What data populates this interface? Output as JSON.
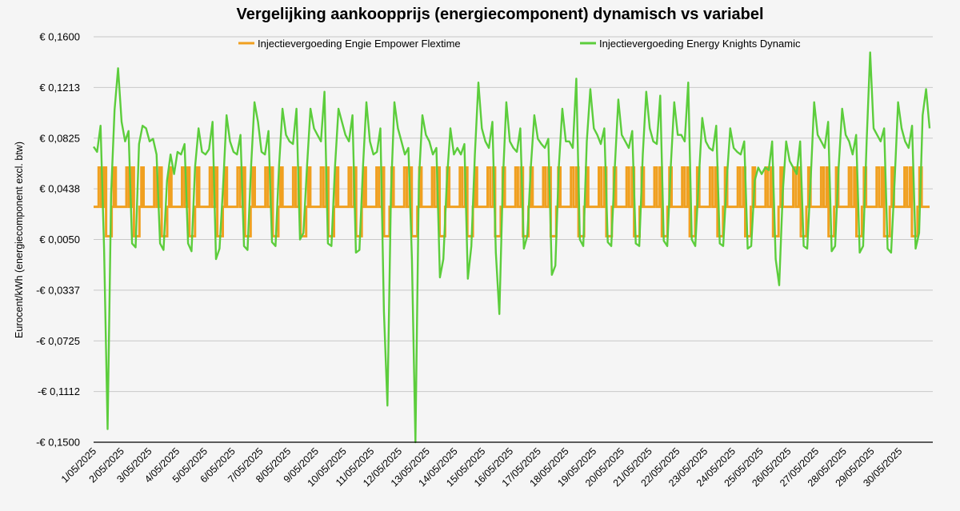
{
  "chart_data": {
    "type": "line",
    "title": "Vergelijking aankoopprijs (energiecomponent) dynamisch vs variabel",
    "xlabel": "",
    "ylabel": "Eurocent/kWh (energiecomponent excl. btw)",
    "ylim": [
      -0.15,
      0.16
    ],
    "y_ticks": [
      "€ 0,1600",
      "€ 0,1213",
      "€ 0,0825",
      "€ 0,0438",
      "€ 0,0050",
      "-€ 0,0337",
      "-€ 0,0725",
      "-€ 0,1112",
      "-€ 0,1500"
    ],
    "x_ticks": [
      "1/05/2025",
      "2/05/2025",
      "3/05/2025",
      "4/05/2025",
      "5/05/2025",
      "6/05/2025",
      "7/05/2025",
      "8/05/2025",
      "9/05/2025",
      "10/05/2025",
      "11/05/2025",
      "12/05/2025",
      "13/05/2025",
      "14/05/2025",
      "15/05/2025",
      "16/05/2025",
      "17/05/2025",
      "18/05/2025",
      "19/05/2025",
      "20/05/2025",
      "21/05/2025",
      "22/05/2025",
      "23/05/2025",
      "24/05/2025",
      "25/05/2025",
      "26/05/2025",
      "27/05/2025",
      "28/05/2025",
      "29/05/2025",
      "30/05/2025"
    ],
    "grid": true,
    "legend_position": "top",
    "series": [
      {
        "name": "Injectievergoeding Engie Empower Flextime",
        "color": "#f0a020",
        "pattern": "daily tariff: 0.0300 at night, 0.0600 at morning and evening peaks, 0.0075 during midday",
        "daily_levels": [
          0.03,
          0.06,
          0.03,
          0.06,
          0.0075,
          0.03
        ],
        "points_per_day": 8
      },
      {
        "name": "Injectievergoeding Energy Knights Dynamic",
        "color": "#5ccd3c",
        "points_per_day": 8,
        "values": [
          0.076,
          0.072,
          0.092,
          -0.002,
          -0.14,
          0.04,
          0.104,
          0.136,
          0.095,
          0.08,
          0.088,
          0.002,
          -0.001,
          0.078,
          0.092,
          0.09,
          0.08,
          0.082,
          0.07,
          0.002,
          -0.003,
          0.05,
          0.07,
          0.055,
          0.072,
          0.07,
          0.078,
          0.002,
          -0.004,
          0.06,
          0.09,
          0.072,
          0.07,
          0.074,
          0.095,
          -0.01,
          -0.002,
          0.045,
          0.1,
          0.08,
          0.072,
          0.07,
          0.085,
          0.0,
          -0.003,
          0.06,
          0.11,
          0.095,
          0.072,
          0.07,
          0.088,
          0.003,
          0.0,
          0.06,
          0.105,
          0.085,
          0.08,
          0.078,
          0.105,
          0.005,
          0.01,
          0.06,
          0.105,
          0.09,
          0.085,
          0.08,
          0.118,
          0.002,
          0.0,
          0.06,
          0.105,
          0.095,
          0.085,
          0.08,
          0.1,
          -0.005,
          -0.003,
          0.06,
          0.11,
          0.08,
          0.07,
          0.072,
          0.09,
          -0.05,
          -0.122,
          0.04,
          0.11,
          0.09,
          0.08,
          0.07,
          0.075,
          -0.01,
          -0.15,
          0.05,
          0.1,
          0.085,
          0.08,
          0.07,
          0.075,
          -0.024,
          -0.01,
          0.05,
          0.09,
          0.07,
          0.075,
          0.07,
          0.078,
          -0.025,
          0.0,
          0.07,
          0.125,
          0.09,
          0.08,
          0.075,
          0.095,
          -0.005,
          -0.052,
          0.05,
          0.11,
          0.08,
          0.075,
          0.072,
          0.09,
          -0.002,
          0.008,
          0.06,
          0.1,
          0.082,
          0.078,
          0.075,
          0.082,
          -0.022,
          -0.015,
          0.06,
          0.105,
          0.08,
          0.08,
          0.075,
          0.128,
          0.005,
          0.0,
          0.08,
          0.12,
          0.09,
          0.085,
          0.078,
          0.09,
          0.003,
          0.0,
          0.06,
          0.112,
          0.085,
          0.08,
          0.075,
          0.088,
          0.002,
          0.0,
          0.07,
          0.118,
          0.09,
          0.08,
          0.078,
          0.115,
          0.004,
          0.0,
          0.06,
          0.11,
          0.085,
          0.085,
          0.08,
          0.125,
          0.005,
          0.0,
          0.05,
          0.098,
          0.08,
          0.075,
          0.073,
          0.092,
          0.002,
          0.0,
          0.05,
          0.09,
          0.075,
          0.072,
          0.07,
          0.08,
          -0.002,
          0.0,
          0.05,
          0.06,
          0.055,
          0.06,
          0.058,
          0.08,
          -0.01,
          -0.03,
          0.04,
          0.08,
          0.065,
          0.06,
          0.055,
          0.08,
          0.0,
          -0.002,
          0.05,
          0.11,
          0.085,
          0.08,
          0.075,
          0.095,
          -0.004,
          0.0,
          0.06,
          0.105,
          0.085,
          0.08,
          0.07,
          0.085,
          -0.005,
          0.0,
          0.08,
          0.148,
          0.09,
          0.085,
          0.08,
          0.09,
          -0.002,
          -0.005,
          0.05,
          0.11,
          0.09,
          0.08,
          0.075,
          0.092,
          -0.002,
          0.01,
          0.1,
          0.12,
          0.09
        ]
      }
    ]
  }
}
